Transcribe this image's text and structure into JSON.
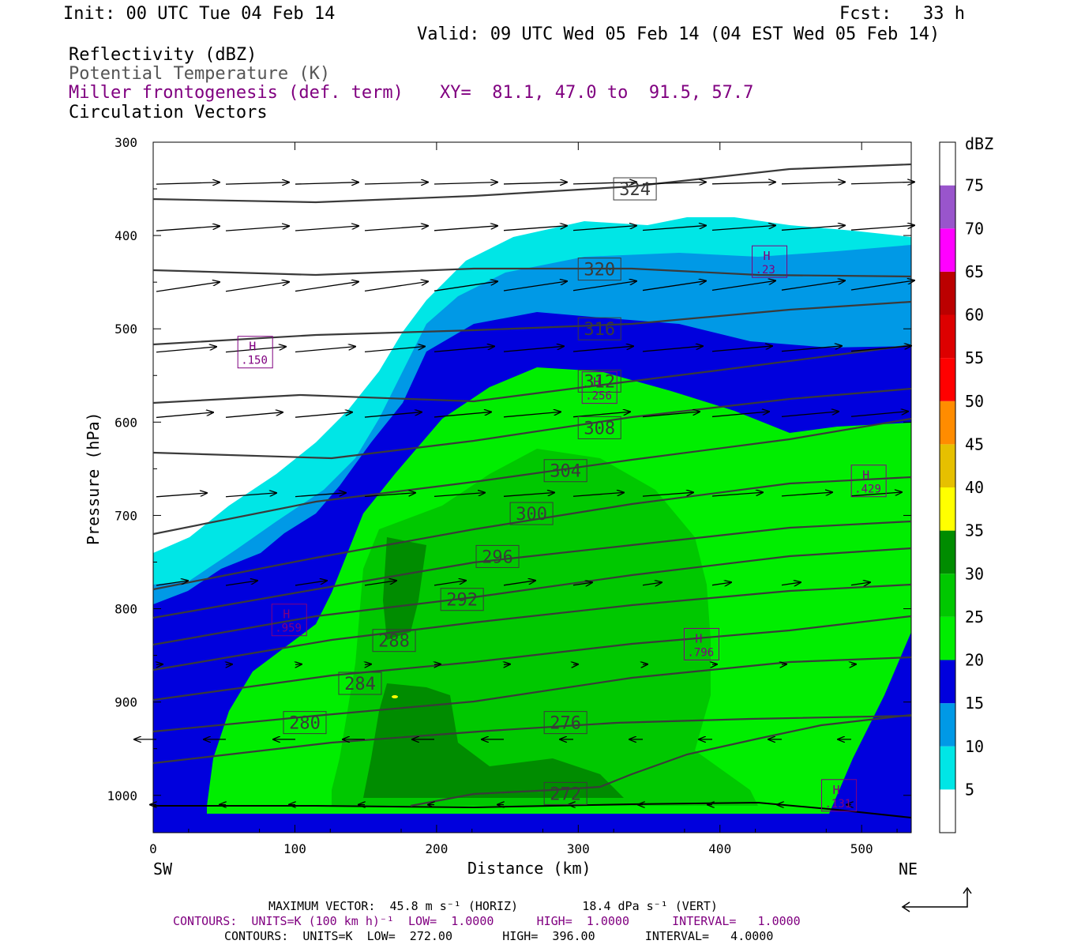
{
  "header": {
    "init": "Init: 00 UTC Tue 04 Feb 14",
    "fcst": "Fcst:   33 h",
    "valid": "Valid: 09 UTC Wed 05 Feb 14 (04 EST Wed 05 Feb 14)"
  },
  "legend_lines": {
    "reflectivity": "Reflectivity (dBZ)",
    "theta": "Potential Temperature (K)",
    "frontogenesis": "Miller frontogenesis (def. term)",
    "xy": "XY=  81.1, 47.0 to  91.5, 57.7",
    "vectors": "Circulation Vectors"
  },
  "axes": {
    "ylabel": "Pressure (hPa)",
    "xlabel": "Distance (km)",
    "left_end": "SW",
    "right_end": "NE"
  },
  "colorbar": {
    "unit": "dBZ",
    "levels": [
      "5",
      "10",
      "15",
      "20",
      "25",
      "30",
      "35",
      "40",
      "45",
      "50",
      "55",
      "60",
      "65",
      "70",
      "75"
    ],
    "colors": [
      "#00e6e6",
      "#0099e6",
      "#0000dd",
      "#00ee00",
      "#00c800",
      "#008c00",
      "#ffff00",
      "#e6c000",
      "#ff8c00",
      "#ff0000",
      "#dd0000",
      "#bb0000",
      "#ff00ff",
      "#9955cc",
      "#ffffff"
    ]
  },
  "footer": {
    "max_vector": "MAXIMUM VECTOR:  45.8 m s⁻¹ (HORIZ)         18.4 dPa s⁻¹ (VERT)",
    "contours_fronto": "CONTOURS:  UNITS=K (100 km h)⁻¹  LOW=  1.0000      HIGH=  1.0000      INTERVAL=   1.0000",
    "contours_theta": "CONTOURS:  UNITS=K  LOW=  272.00       HIGH=  396.00       INTERVAL=   4.0000"
  },
  "chart_data": {
    "type": "cross-section",
    "x_range_km": [
      0,
      535
    ],
    "y_range_hpa": [
      1040,
      300
    ],
    "x_ticks": [
      0,
      100,
      200,
      300,
      400,
      500
    ],
    "y_ticks": [
      300,
      400,
      500,
      600,
      700,
      800,
      900,
      1000
    ],
    "theta_labels": [
      {
        "value": "324",
        "x": 340,
        "p": 350
      },
      {
        "value": "320",
        "x": 315,
        "p": 436
      },
      {
        "value": "316",
        "x": 315,
        "p": 500
      },
      {
        "value": "312",
        "x": 315,
        "p": 556
      },
      {
        "value": "308",
        "x": 315,
        "p": 606
      },
      {
        "value": "304",
        "x": 291,
        "p": 652
      },
      {
        "value": "300",
        "x": 267,
        "p": 698
      },
      {
        "value": "296",
        "x": 243,
        "p": 744
      },
      {
        "value": "292",
        "x": 218,
        "p": 790
      },
      {
        "value": "288",
        "x": 170,
        "p": 834
      },
      {
        "value": "284",
        "x": 146,
        "p": 880
      },
      {
        "value": "280",
        "x": 107,
        "p": 922
      },
      {
        "value": "276",
        "x": 291,
        "p": 922
      },
      {
        "value": "272",
        "x": 291,
        "p": 998
      }
    ],
    "frontogenesis_maxima": [
      {
        "label": "H",
        "value": ".150",
        "x": 72,
        "p": 525
      },
      {
        "label": "H",
        "value": ".959",
        "x": 96,
        "p": 812
      },
      {
        "label": "H",
        "value": ".256",
        "x": 315,
        "p": 563
      },
      {
        "label": "H",
        "value": ".23",
        "x": 435,
        "p": 428
      },
      {
        "label": "H",
        "value": ".796",
        "x": 387,
        "p": 838
      },
      {
        "label": "H",
        "value": ".429",
        "x": 505,
        "p": 663
      },
      {
        "label": "H",
        "value": ".131",
        "x": 484,
        "p": 1000
      }
    ]
  }
}
